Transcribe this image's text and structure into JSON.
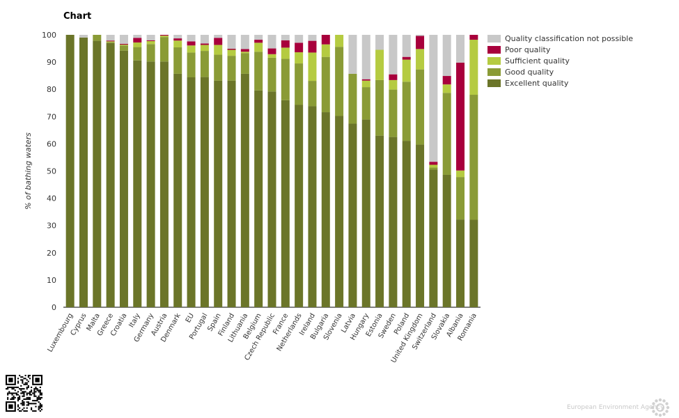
{
  "chart_title": "Chart",
  "footer_text": "European Environment Agency",
  "chart_data": {
    "type": "bar",
    "stacked": true,
    "ylabel": "% of bathing waters",
    "ylim": [
      0,
      100
    ],
    "yticks": [
      0,
      10,
      20,
      30,
      40,
      50,
      60,
      70,
      80,
      90,
      100
    ],
    "grid": false,
    "legend_position": "top-right",
    "categories": [
      "Luxembourg",
      "Cyprus",
      "Malta",
      "Greece",
      "Croatia",
      "Italy",
      "Germany",
      "Austria",
      "Denmark",
      "EU",
      "Portugal",
      "Spain",
      "Finland",
      "Lithuania",
      "Belgium",
      "Czech Republic",
      "France",
      "Netherlands",
      "Ireland",
      "Bulgaria",
      "Slovenia",
      "Latvia",
      "Hungary",
      "Estonia",
      "Sweden",
      "Poland",
      "United Kingdom",
      "Switzerland",
      "Slovakia",
      "Albania",
      "Romania"
    ],
    "series": [
      {
        "name": "Excellent quality",
        "color": "#6b7529",
        "values": [
          100,
          99,
          97.8,
          97,
          94.2,
          90.6,
          90.2,
          90.2,
          85.7,
          84.4,
          84.5,
          83.2,
          83.2,
          85.7,
          79.6,
          79.2,
          76,
          74.3,
          73.8,
          71.6,
          70.2,
          67.4,
          68.9,
          63,
          62.5,
          61.1,
          59.7,
          50.5,
          48.6,
          32.2,
          32.1
        ]
      },
      {
        "name": "Good quality",
        "color": "#8a9b36",
        "values": [
          0,
          0,
          2.2,
          0.3,
          1.9,
          4.9,
          6.4,
          9,
          9.7,
          9.1,
          9.6,
          9.5,
          9.1,
          7.6,
          14.2,
          12.4,
          15.2,
          15.2,
          9.3,
          20.3,
          25.4,
          18.3,
          11.9,
          20.4,
          17.4,
          21.7,
          27.6,
          0.8,
          30.1,
          15.6,
          45.9
        ]
      },
      {
        "name": "Sufficient quality",
        "color": "#b5cb41",
        "values": [
          0,
          0,
          0,
          0.3,
          0.3,
          1.7,
          1.1,
          0.5,
          2.5,
          2.6,
          2.2,
          3.6,
          2.2,
          0.5,
          3.3,
          1.3,
          4.1,
          4.1,
          10.4,
          4.6,
          4.4,
          0,
          2.4,
          11.1,
          3.5,
          8.1,
          7.5,
          1,
          3.1,
          2.4,
          20.2
        ]
      },
      {
        "name": "Poor quality",
        "color": "#a8003c",
        "values": [
          0,
          0,
          0,
          0.3,
          0.3,
          1.7,
          0.3,
          0.3,
          0.8,
          1.5,
          0.5,
          2.6,
          0.4,
          1,
          1.1,
          2.1,
          2.7,
          3.5,
          4.3,
          3.5,
          0,
          0,
          0.5,
          0,
          2.1,
          1,
          4.8,
          1.1,
          3.1,
          39.6,
          1.8
        ]
      },
      {
        "name": "Quality classification not possible",
        "color": "#c8c8c8",
        "values": [
          0,
          1,
          0,
          2.1,
          3.3,
          1.1,
          2,
          0,
          1.3,
          2.4,
          3.2,
          1.1,
          5.1,
          5.2,
          1.8,
          5,
          2,
          2.9,
          2.2,
          0,
          0,
          14.3,
          16.3,
          5.5,
          14.5,
          8.1,
          0.4,
          46.6,
          15.1,
          10.2,
          0
        ]
      }
    ]
  }
}
